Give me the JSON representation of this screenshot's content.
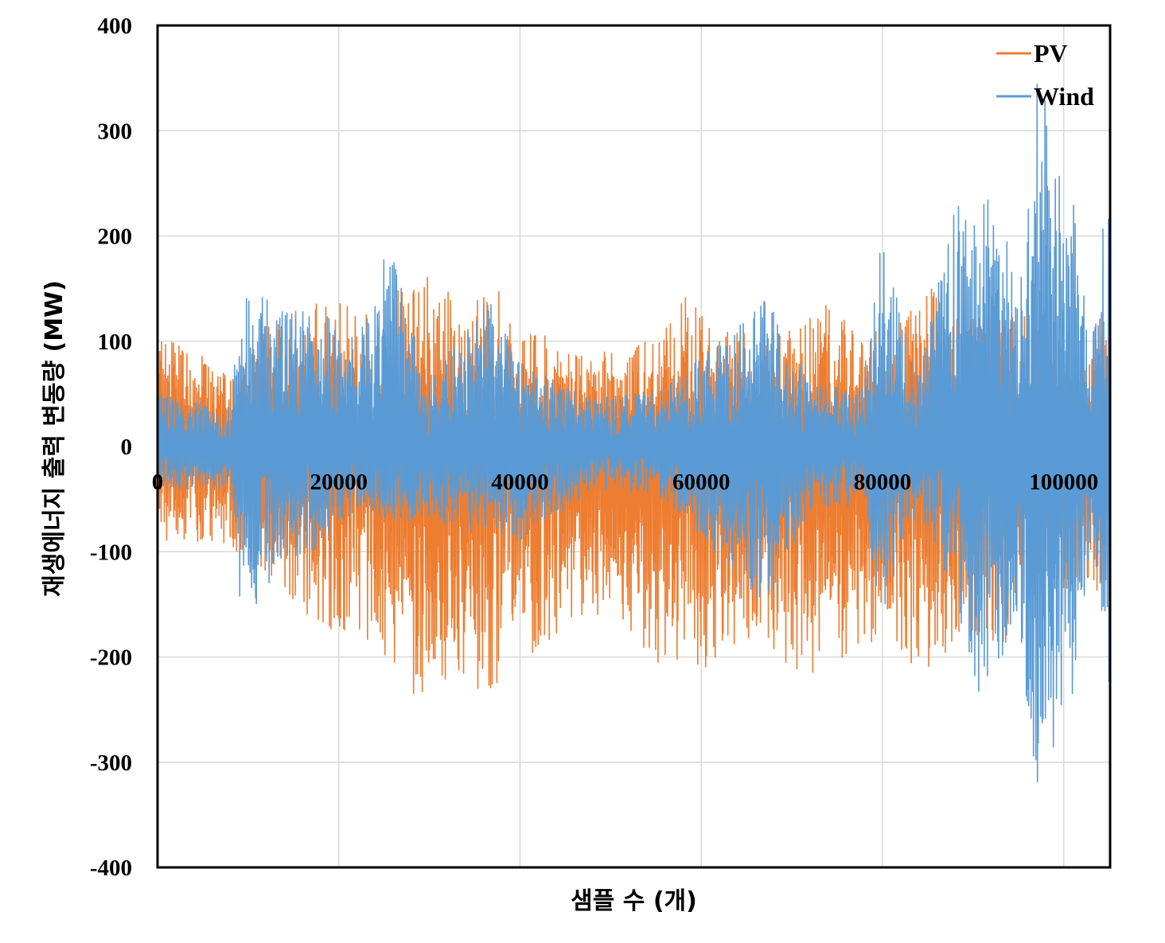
{
  "chart_data": {
    "type": "line",
    "title": "",
    "xlabel": "샘플 수 (개)",
    "ylabel": "재생에너지 출력 변동량 (MW)",
    "xlim": [
      0,
      105120
    ],
    "ylim": [
      -400,
      400
    ],
    "x_ticks": [
      0,
      20000,
      40000,
      60000,
      80000,
      100000
    ],
    "x_tick_labels": [
      "0",
      "20000",
      "40000",
      "60000",
      "80000",
      "100000"
    ],
    "y_ticks": [
      400,
      300,
      200,
      100,
      0,
      -100,
      -200,
      -300,
      -400
    ],
    "y_tick_labels": [
      "400",
      "300",
      "200",
      "100",
      "0",
      "-100",
      "-200",
      "-300",
      "-400"
    ],
    "grid": true,
    "legend_position": "top-right",
    "series": [
      {
        "name": "PV",
        "color": "#ED7D31",
        "envelope_points": [
          {
            "x": 0,
            "max": 105,
            "min": -93
          },
          {
            "x": 4000,
            "max": 100,
            "min": -90
          },
          {
            "x": 8000,
            "max": 65,
            "min": -100
          },
          {
            "x": 12000,
            "max": 120,
            "min": -120
          },
          {
            "x": 16000,
            "max": 133,
            "min": -158
          },
          {
            "x": 20000,
            "max": 140,
            "min": -178
          },
          {
            "x": 24000,
            "max": 128,
            "min": -185
          },
          {
            "x": 28000,
            "max": 162,
            "min": -235
          },
          {
            "x": 30000,
            "max": 170,
            "min": -258
          },
          {
            "x": 34000,
            "max": 125,
            "min": -220
          },
          {
            "x": 37000,
            "max": 158,
            "min": -245
          },
          {
            "x": 40000,
            "max": 110,
            "min": -205
          },
          {
            "x": 44000,
            "max": 105,
            "min": -180
          },
          {
            "x": 48000,
            "max": 90,
            "min": -160
          },
          {
            "x": 52000,
            "max": 92,
            "min": -172
          },
          {
            "x": 56000,
            "max": 113,
            "min": -220
          },
          {
            "x": 58000,
            "max": 145,
            "min": -210
          },
          {
            "x": 62000,
            "max": 110,
            "min": -210
          },
          {
            "x": 66000,
            "max": 108,
            "min": -180
          },
          {
            "x": 70000,
            "max": 115,
            "min": -218
          },
          {
            "x": 74000,
            "max": 138,
            "min": -215
          },
          {
            "x": 78000,
            "max": 108,
            "min": -190
          },
          {
            "x": 82000,
            "max": 118,
            "min": -205
          },
          {
            "x": 86000,
            "max": 165,
            "min": -215
          },
          {
            "x": 88000,
            "max": 120,
            "min": -190
          },
          {
            "x": 92000,
            "max": 125,
            "min": -195
          },
          {
            "x": 96000,
            "max": 130,
            "min": -185
          },
          {
            "x": 98000,
            "max": 100,
            "min": -150
          },
          {
            "x": 102000,
            "max": 100,
            "min": -140
          },
          {
            "x": 105120,
            "max": 152,
            "min": -145
          }
        ]
      },
      {
        "name": "Wind",
        "color": "#5B9BD5",
        "envelope_points": [
          {
            "x": 0,
            "max": 50,
            "min": -40
          },
          {
            "x": 8000,
            "max": 40,
            "min": -40
          },
          {
            "x": 9200,
            "max": 137,
            "min": -155
          },
          {
            "x": 11000,
            "max": 165,
            "min": -150
          },
          {
            "x": 14000,
            "max": 127,
            "min": -110
          },
          {
            "x": 18000,
            "max": 130,
            "min": -100
          },
          {
            "x": 22000,
            "max": 100,
            "min": -60
          },
          {
            "x": 25500,
            "max": 197,
            "min": -70
          },
          {
            "x": 30000,
            "max": 60,
            "min": -70
          },
          {
            "x": 36500,
            "max": 142,
            "min": -85
          },
          {
            "x": 40000,
            "max": 80,
            "min": -95
          },
          {
            "x": 48000,
            "max": 45,
            "min": -40
          },
          {
            "x": 56000,
            "max": 55,
            "min": -50
          },
          {
            "x": 67000,
            "max": 145,
            "min": -155
          },
          {
            "x": 72000,
            "max": 60,
            "min": -60
          },
          {
            "x": 78000,
            "max": 55,
            "min": -60
          },
          {
            "x": 79800,
            "max": 197,
            "min": -185
          },
          {
            "x": 84000,
            "max": 65,
            "min": -60
          },
          {
            "x": 88000,
            "max": 230,
            "min": -145
          },
          {
            "x": 90500,
            "max": 245,
            "min": -235
          },
          {
            "x": 93000,
            "max": 242,
            "min": -235
          },
          {
            "x": 95000,
            "max": 140,
            "min": -160
          },
          {
            "x": 97200,
            "max": 367,
            "min": -375
          },
          {
            "x": 99500,
            "max": 260,
            "min": -258
          },
          {
            "x": 101300,
            "max": 245,
            "min": -237
          },
          {
            "x": 103000,
            "max": 80,
            "min": -90
          },
          {
            "x": 105120,
            "max": 300,
            "min": -310
          }
        ]
      }
    ]
  }
}
